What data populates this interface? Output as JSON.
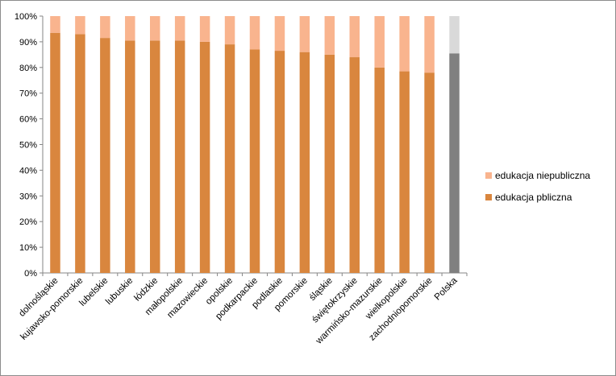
{
  "chart_data": {
    "type": "bar",
    "stacked": true,
    "percent": true,
    "title": "",
    "xlabel": "",
    "ylabel": "",
    "ylim": [
      0,
      100
    ],
    "yticks": [
      "0%",
      "10%",
      "20%",
      "30%",
      "40%",
      "50%",
      "60%",
      "70%",
      "80%",
      "90%",
      "100%"
    ],
    "grid": false,
    "legend_position": "right",
    "categories": [
      "dolnośląskie",
      "kujawsko-pomorskie",
      "lubelskie",
      "lubuskie",
      "łódzkie",
      "małopolskie",
      "mazowieckie",
      "opolskie",
      "podkarpackie",
      "podlaskie",
      "pomorskie",
      "śląskie",
      "świętokrzyskie",
      "warmińsko-mazurskie",
      "wielkopolskie",
      "zachodniopomorskie",
      "Polska"
    ],
    "series": [
      {
        "name": "edukacja pbliczna",
        "color": "#D9863E",
        "highlight_color": "#808080",
        "values": [
          93.5,
          93,
          91.5,
          90.5,
          90.5,
          90.5,
          90,
          89,
          87,
          86.5,
          86,
          85,
          84,
          80,
          78.5,
          78,
          85.5
        ]
      },
      {
        "name": "edukacja niepubliczna",
        "color": "#F9B48E",
        "highlight_color": "#D9D9D9",
        "values": [
          6.5,
          7,
          8.5,
          9.5,
          9.5,
          9.5,
          10,
          11,
          13,
          13.5,
          14,
          15,
          16,
          20,
          21.5,
          22,
          14.5
        ]
      }
    ],
    "highlight_category": "Polska",
    "legend": [
      {
        "label": "edukacja niepubliczna",
        "color": "#F9B48E"
      },
      {
        "label": "edukacja pbliczna",
        "color": "#D9863E"
      }
    ]
  }
}
